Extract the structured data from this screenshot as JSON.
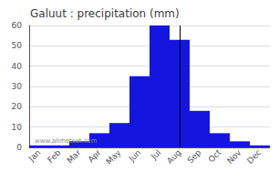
{
  "chart_data": {
    "type": "bar",
    "title": "Galuut : precipitation (mm)",
    "categories": [
      "Jan",
      "Feb",
      "Mar",
      "Apr",
      "May",
      "Jun",
      "Jul",
      "Aug",
      "Sep",
      "Oct",
      "Nov",
      "Dec"
    ],
    "values": [
      1,
      1,
      3,
      7,
      12,
      35,
      60,
      53,
      18,
      7,
      3,
      1
    ],
    "color": "#1515e0",
    "ylim": [
      0,
      60
    ],
    "yticks": [
      0,
      10,
      20,
      30,
      40,
      50,
      60
    ],
    "grid": true,
    "annotation": "www.allmetsat.com",
    "vline": 6.5
  }
}
